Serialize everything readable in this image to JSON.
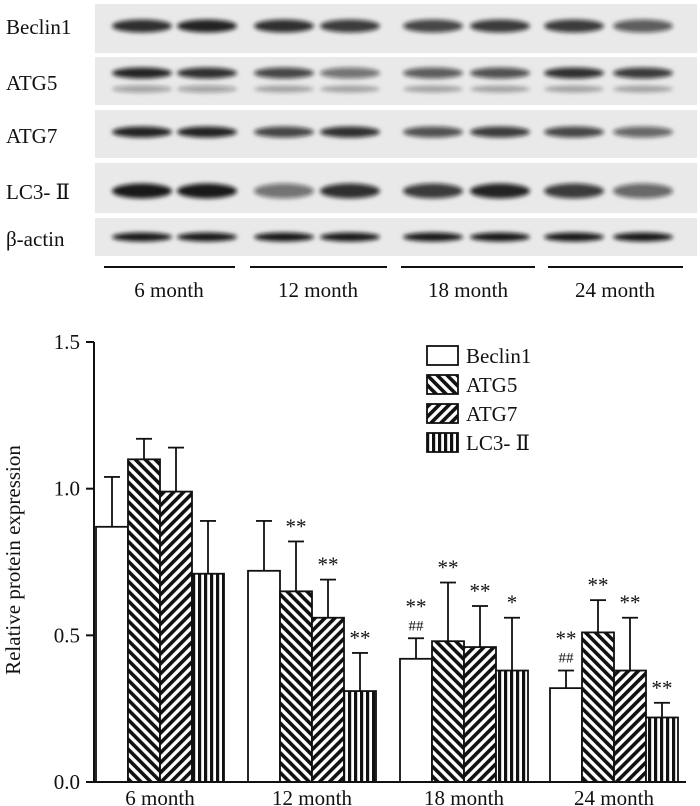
{
  "blot": {
    "row_labels": [
      "Beclin1",
      "ATG5",
      "ATG7",
      "LC3- Ⅱ",
      "β-actin"
    ],
    "group_labels": [
      "6 month",
      "12 month",
      "18 month",
      "24 month"
    ]
  },
  "chart_data": {
    "type": "bar",
    "title": "",
    "xlabel": "",
    "ylabel": "Relative protein expression",
    "ylim": [
      0,
      1.5
    ],
    "yticks": [
      "0.0",
      "0.5",
      "1.0",
      "1.5"
    ],
    "categories": [
      "6 month",
      "12 month",
      "18 month",
      "24 month"
    ],
    "legend_position": "top-right",
    "series": [
      {
        "name": "Beclin1",
        "pattern": "open",
        "values": [
          0.87,
          0.72,
          0.42,
          0.32
        ],
        "errors": [
          0.17,
          0.17,
          0.07,
          0.06
        ],
        "annotations": [
          [],
          [],
          [
            "**",
            "##"
          ],
          [
            "**",
            "##"
          ]
        ]
      },
      {
        "name": "ATG5",
        "pattern": "diagonal-forward",
        "values": [
          1.1,
          0.65,
          0.48,
          0.51
        ],
        "errors": [
          0.07,
          0.17,
          0.2,
          0.11
        ],
        "annotations": [
          [],
          [
            "**"
          ],
          [
            "**"
          ],
          [
            "**"
          ]
        ]
      },
      {
        "name": "ATG7",
        "pattern": "diagonal-back",
        "values": [
          0.99,
          0.56,
          0.46,
          0.38
        ],
        "errors": [
          0.15,
          0.13,
          0.14,
          0.18
        ],
        "annotations": [
          [],
          [
            "**"
          ],
          [
            "**"
          ],
          [
            "**"
          ]
        ]
      },
      {
        "name": "LC3- Ⅱ",
        "pattern": "vertical",
        "values": [
          0.71,
          0.31,
          0.38,
          0.22
        ],
        "errors": [
          0.18,
          0.13,
          0.18,
          0.05
        ],
        "annotations": [
          [],
          [
            "**"
          ],
          [
            "*"
          ],
          [
            "**"
          ]
        ]
      }
    ]
  }
}
